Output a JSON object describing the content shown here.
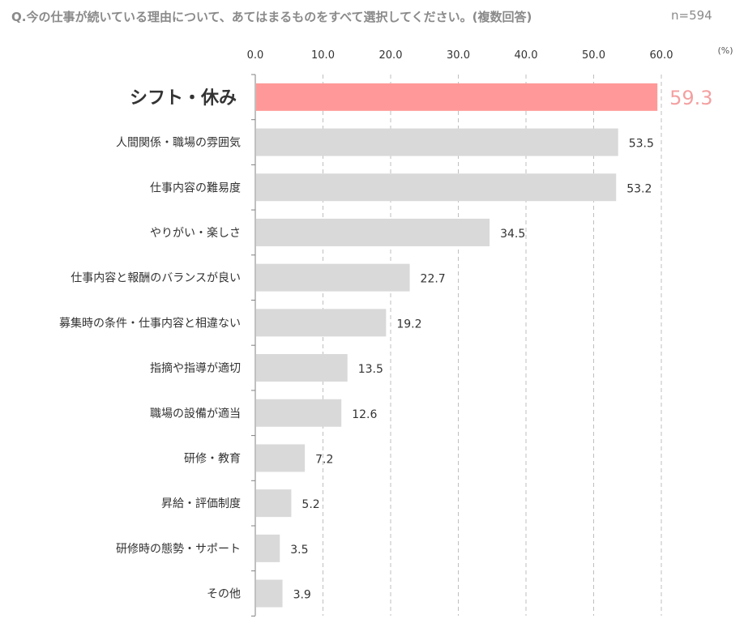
{
  "header": {
    "question": "Q.今の仕事が続いている理由について、あてはまるものをすべて選択してください。(複数回答)",
    "n": "n=594"
  },
  "chart_data": {
    "type": "bar",
    "orientation": "horizontal",
    "categories": [
      "シフト・休み",
      "人間関係・職場の雰囲気",
      "仕事内容の難易度",
      "やりがい・楽しさ",
      "仕事内容と報酬のバランスが良い",
      "募集時の条件・仕事内容と相違ない",
      "指摘や指導が適切",
      "職場の設備が適当",
      "研修・教育",
      "昇給・評価制度",
      "研修時の態勢・サポート",
      "その他"
    ],
    "values": [
      59.3,
      53.5,
      53.2,
      34.5,
      22.7,
      19.2,
      13.5,
      12.6,
      7.2,
      5.2,
      3.5,
      3.9
    ],
    "value_labels": [
      "59.3",
      "53.5",
      "53.2",
      "34.5",
      "22.7",
      "19.2",
      "13.5",
      "12.6",
      "7.2",
      "5.2",
      "3.5",
      "3.9"
    ],
    "xlim": [
      0,
      60
    ],
    "xticks": [
      "0.0",
      "10.0",
      "20.0",
      "30.0",
      "40.0",
      "50.0",
      "60.0"
    ],
    "unit": "(%)",
    "highlight_index": 0,
    "colors": {
      "highlight": "#ff9999",
      "bar": "#d9d9d9",
      "highlight_label": "#f4a0a0",
      "grid": "#bfbfbf"
    },
    "grid": true
  }
}
